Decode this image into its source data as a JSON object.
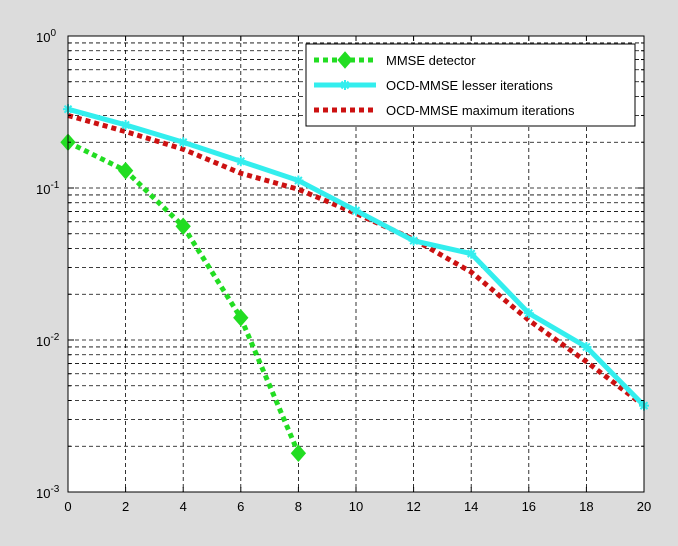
{
  "chart_data": {
    "type": "line",
    "title": "",
    "xlabel": "",
    "ylabel": "",
    "x_scale": "linear",
    "y_scale": "log",
    "xlim": [
      0,
      20
    ],
    "ylim": [
      0.001,
      1
    ],
    "x_ticks": [
      0,
      2,
      4,
      6,
      8,
      10,
      12,
      14,
      16,
      18,
      20
    ],
    "x_tick_labels": [
      "0",
      "2",
      "4",
      "6",
      "8",
      "10",
      "12",
      "14",
      "16",
      "18",
      "20"
    ],
    "y_ticks": [
      0.001,
      0.01,
      0.1,
      1
    ],
    "y_tick_labels": [
      {
        "base": "10",
        "exp": "-3"
      },
      {
        "base": "10",
        "exp": "-2"
      },
      {
        "base": "10",
        "exp": "-1"
      },
      {
        "base": "10",
        "exp": "0"
      }
    ],
    "grid": true,
    "legend_position": "top-right",
    "series": [
      {
        "name": "MMSE detector",
        "color": "#22dd22",
        "line_style": "dotted",
        "marker": "diamond",
        "x": [
          0,
          2,
          4,
          6,
          8
        ],
        "y": [
          0.2,
          0.13,
          0.056,
          0.014,
          0.0018
        ]
      },
      {
        "name": "OCD-MMSE lesser iterations",
        "color": "#33eeee",
        "line_style": "solid",
        "marker": "star",
        "x": [
          0,
          2,
          4,
          6,
          8,
          10,
          12,
          14,
          16,
          18,
          20
        ],
        "y": [
          0.33,
          0.26,
          0.2,
          0.15,
          0.112,
          0.071,
          0.045,
          0.037,
          0.015,
          0.009,
          0.0037
        ]
      },
      {
        "name": "OCD-MMSE maximum iterations",
        "color": "#cc1111",
        "line_style": "dotted",
        "marker": "none",
        "x": [
          0,
          2,
          4,
          6,
          8,
          10,
          12,
          14,
          16,
          18,
          20
        ],
        "y": [
          0.3,
          0.235,
          0.18,
          0.125,
          0.098,
          0.068,
          0.046,
          0.028,
          0.0135,
          0.0072,
          0.0037
        ]
      }
    ]
  }
}
